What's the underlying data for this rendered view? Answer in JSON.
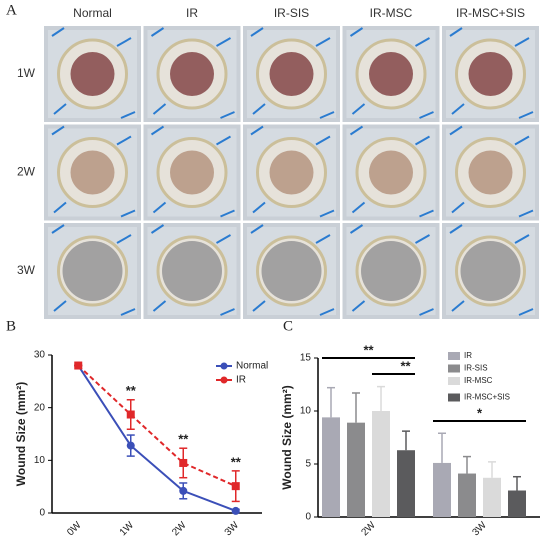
{
  "panel_labels": [
    "A",
    "B",
    "C"
  ],
  "photo_grid": {
    "columns": [
      "Normal",
      "IR",
      "IR-SIS",
      "IR-MSC",
      "IR-MSC+SIS"
    ],
    "rows": [
      "1W",
      "2W",
      "3W"
    ]
  },
  "chart_data": [
    {
      "type": "line",
      "ylabel": "Wound Size (mm²)",
      "categories": [
        "0W",
        "1W",
        "2W",
        "3W"
      ],
      "series": [
        {
          "name": "Normal",
          "color": "#3b4fb8",
          "marker": "circle",
          "line_style": "solid",
          "values": [
            28,
            12.8,
            4.2,
            0.4
          ],
          "errors": [
            0,
            2,
            1.5,
            0.3
          ]
        },
        {
          "name": "IR",
          "color": "#e0282a",
          "marker": "square",
          "line_style": "dashed",
          "values": [
            28,
            18.7,
            9.5,
            5.1
          ],
          "errors": [
            0,
            2.8,
            2.8,
            2.9
          ]
        }
      ],
      "ylim": [
        0,
        30
      ],
      "yticks": [
        0,
        10,
        20,
        30
      ],
      "annotations": [
        "**",
        "**",
        "**"
      ],
      "legend": "upper right"
    },
    {
      "type": "bar",
      "ylabel": "Wound Size (mm²)",
      "categories": [
        "2W",
        "3W"
      ],
      "series": [
        {
          "name": "IR",
          "color": "#a9a9b4",
          "values": [
            9.4,
            5.1
          ],
          "errors": [
            2.8,
            2.8
          ]
        },
        {
          "name": "IR-SIS",
          "color": "#8b8b8d",
          "values": [
            8.9,
            4.1
          ],
          "errors": [
            2.8,
            1.6
          ]
        },
        {
          "name": "IR-MSC",
          "color": "#dadada",
          "values": [
            10,
            3.7
          ],
          "errors": [
            2.3,
            1.5
          ]
        },
        {
          "name": "IR-MSC+SIS",
          "color": "#5b5b5d",
          "values": [
            6.3,
            2.5
          ],
          "errors": [
            1.8,
            1.3
          ]
        }
      ],
      "ylim": [
        0,
        15
      ],
      "yticks": [
        0,
        5,
        10,
        15
      ],
      "annotations": [
        "**",
        "**",
        "*"
      ],
      "legend": "upper right"
    }
  ]
}
